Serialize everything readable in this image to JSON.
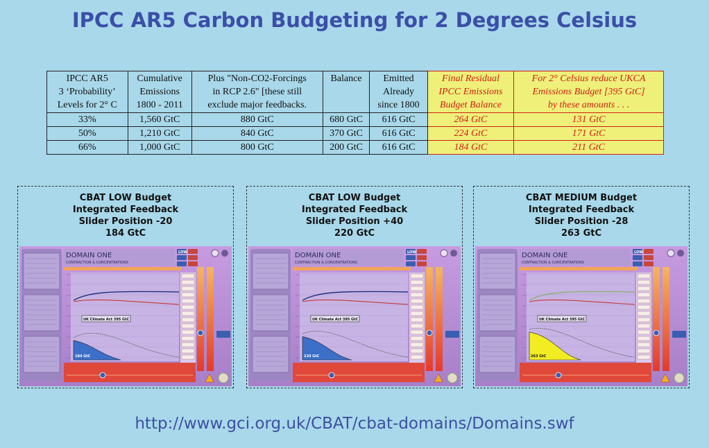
{
  "title": "IPCC AR5 Carbon Budgeting for 2 Degrees Celsius",
  "table": {
    "headers": [
      [
        "IPCC AR5",
        "3 ‘Probability’",
        "Levels for 2° C"
      ],
      [
        "Cumulative",
        "Emissions",
        "1800 - 2011"
      ],
      [
        "Plus \"Non-CO2-Forcings",
        "in RCP 2.6\" [these still",
        "exclude major feedbacks."
      ],
      [
        "Balance"
      ],
      [
        "Emitted",
        "Already",
        "since 1800"
      ],
      [
        "Final Residual",
        "IPCC Emissions",
        "Budget Balance"
      ],
      [
        "For 2° Celsius reduce UKCA",
        "Emissions Budget [395 GtC]",
        "by these amounts . . ."
      ]
    ],
    "rows": [
      [
        "33%",
        "1,560 GtC",
        "880 GtC",
        "680 GtC",
        "616 GtC",
        "264 GtC",
        "131 GtC"
      ],
      [
        "50%",
        "1,210 GtC",
        "840 GtC",
        "370 GtC",
        "616 GtC",
        "224 GtC",
        "171 GtC"
      ],
      [
        "66%",
        "1,000 GtC",
        "800 GtC",
        "200 GtC",
        "616 GtC",
        "184 GtC",
        "211 GtC"
      ]
    ],
    "highlight_color": "#eef07a",
    "highlight_text_color": "#d02010"
  },
  "panels": [
    {
      "caption": [
        "CBAT LOW Budget",
        "Integrated Feedback",
        "Slider Position -20",
        "184 GtC"
      ],
      "screen": {
        "domain_title": "DOMAIN ONE",
        "domain_subtitle": "CONTRACTION & CONCENTRATIONS",
        "budget_button": "LOW",
        "callout": "UK Climate Act 395 GtC",
        "area_label": "184 GtC",
        "footer_note": "IPCC AR5 66% odds for 2°C if past emissions = 616 GtC",
        "fill_color": "#3c6fc8",
        "fill_level": 0.47
      }
    },
    {
      "caption": [
        "CBAT LOW Budget",
        "Integrated Feedback",
        "Slider Position +40",
        "220 GtC"
      ],
      "screen": {
        "domain_title": "DOMAIN ONE",
        "domain_subtitle": "CONTRACTION & CONCENTRATIONS",
        "budget_button": "LOW",
        "callout": "UK Climate Act 395 GtC",
        "area_label": "220 GtC",
        "footer_note": "IPCC AR5 50% odds for 2°C if past emissions = 616 GtC",
        "fill_color": "#3c6fc8",
        "fill_level": 0.56
      }
    },
    {
      "caption": [
        "CBAT MEDIUM Budget",
        "Integrated Feedback",
        "Slider Position -28",
        "263 GtC"
      ],
      "screen": {
        "domain_title": "DOMAIN ONE",
        "domain_subtitle": "CONTRACTION & CONCENTRATIONS",
        "budget_button": "LOW",
        "callout": "UK Climate Act 395 GtC",
        "area_label": "263 GtC",
        "footer_note": "IPCC AR5 33% odds for 2°C if past emissions = 616 GtC",
        "fill_color": "#f2ec22",
        "fill_level": 0.67
      }
    }
  ],
  "url": "http://www.gci.org.uk/CBAT/cbat-domains/Domains.swf"
}
